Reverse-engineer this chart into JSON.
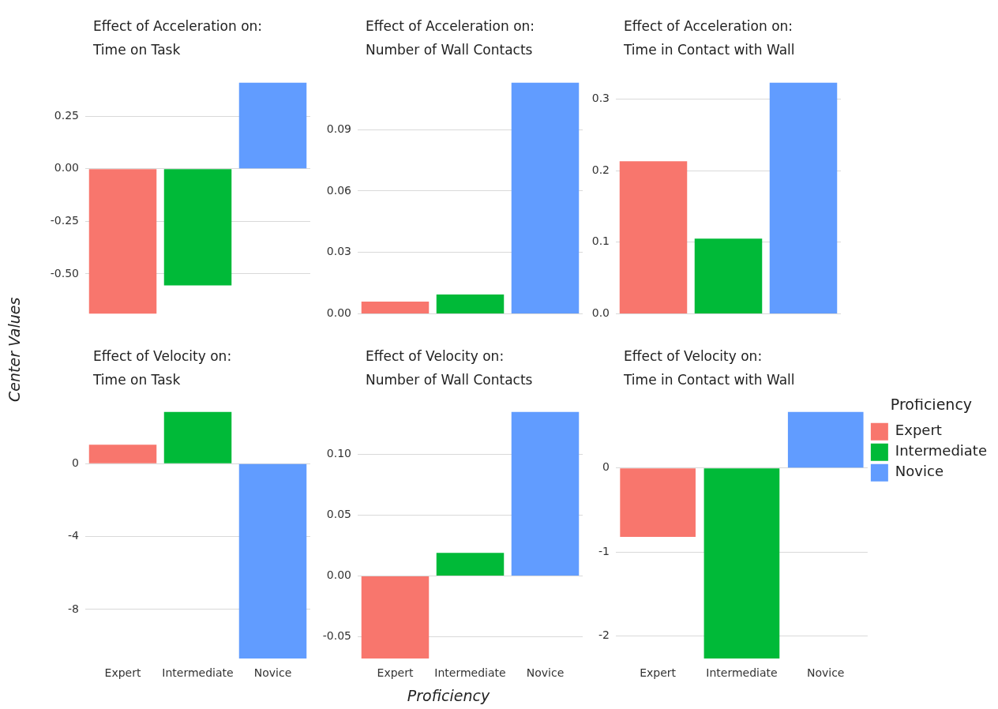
{
  "chart_data": [
    {
      "type": "bar",
      "title": "Effect of Acceleration on:",
      "subtitle": "Time on Task",
      "categories": [
        null,
        null,
        null
      ],
      "values": [
        -0.69,
        -0.555,
        0.41
      ],
      "colors": [
        "#f8766d",
        "#00ba38",
        "#619cff"
      ],
      "ylim": [
        -0.69,
        0.41
      ],
      "yticks": [
        {
          "value": -0.5,
          "label": "-0.50"
        },
        {
          "value": -0.25,
          "label": "-0.25"
        },
        {
          "value": 0,
          "label": "0.00"
        },
        {
          "value": 0.25,
          "label": "0.25"
        }
      ],
      "grid": "y",
      "tick_labels": "y",
      "ylabel": "Center Values"
    },
    {
      "type": "bar",
      "title": "Effect of Acceleration on:",
      "subtitle": "Number of Wall Contacts",
      "categories": [
        null,
        null,
        null
      ],
      "values": [
        0.006,
        0.0095,
        0.113
      ],
      "colors": [
        "#f8766d",
        "#00ba38",
        "#619cff"
      ],
      "ylim": [
        0,
        0.113
      ],
      "yticks": [
        {
          "value": 0,
          "label": "0.00"
        },
        {
          "value": 0.03,
          "label": "0.03"
        },
        {
          "value": 0.06,
          "label": "0.06"
        },
        {
          "value": 0.09,
          "label": "0.09"
        }
      ],
      "grid": "y",
      "tick_labels": "y"
    },
    {
      "type": "bar",
      "title": "Effect of Acceleration on:",
      "subtitle": "Time in Contact with Wall",
      "categories": [
        null,
        null,
        null
      ],
      "values": [
        0.213,
        0.105,
        0.323
      ],
      "colors": [
        "#f8766d",
        "#00ba38",
        "#619cff"
      ],
      "ylim": [
        0,
        0.323
      ],
      "yticks": [
        {
          "value": 0,
          "label": "0.0"
        },
        {
          "value": 0.1,
          "label": "0.1"
        },
        {
          "value": 0.2,
          "label": "0.2"
        },
        {
          "value": 0.3,
          "label": "0.3"
        }
      ],
      "grid": "y",
      "tick_labels": "y"
    },
    {
      "type": "bar",
      "title": "Effect of Velocity on:",
      "subtitle": "Time on Task",
      "categories": [
        "Expert",
        "Intermediate",
        "Novice"
      ],
      "values": [
        1.05,
        2.86,
        -10.7
      ],
      "colors": [
        "#f8766d",
        "#00ba38",
        "#619cff"
      ],
      "ylim": [
        -10.7,
        2.86
      ],
      "yticks": [
        -8,
        -4,
        0
      ],
      "grid": "y"
    },
    {
      "type": "bar",
      "title": "Effect of Velocity on:",
      "subtitle": "Number of Wall Contacts",
      "categories": [
        "Expert",
        "Intermediate",
        "Novice"
      ],
      "values": [
        -0.068,
        0.019,
        0.135
      ],
      "colors": [
        "#f8766d",
        "#00ba38",
        "#619cff"
      ],
      "ylim": [
        -0.068,
        0.135
      ],
      "yticks": [
        {
          "value": -0.05,
          "label": "-0.05"
        },
        {
          "value": 0,
          "label": "0.00"
        },
        {
          "value": 0.05,
          "label": "0.05"
        },
        {
          "value": 0.1,
          "label": "0.10"
        }
      ],
      "grid": "y",
      "xlabel": "Proficiency"
    },
    {
      "type": "bar",
      "title": "Effect of Velocity on:",
      "subtitle": "Time in Contact with Wall",
      "categories": [
        "Expert",
        "Intermediate",
        "Novice"
      ],
      "series": [
        {
          "name": "Expert",
          "color": "#f8766d",
          "values": [
            -0.82,
            null,
            null
          ]
        },
        {
          "name": "Intermediate",
          "color": "#00ba38",
          "values": [
            null,
            -2.27,
            null
          ]
        },
        {
          "name": "Novice",
          "color": "#619cff",
          "values": [
            null,
            null,
            0.67
          ]
        }
      ],
      "ylim": [
        -2.27,
        0.67
      ],
      "yticks": [
        -2,
        -1,
        0
      ],
      "grid": "y",
      "legend": "right",
      "legend_title": "Proficiency"
    }
  ]
}
